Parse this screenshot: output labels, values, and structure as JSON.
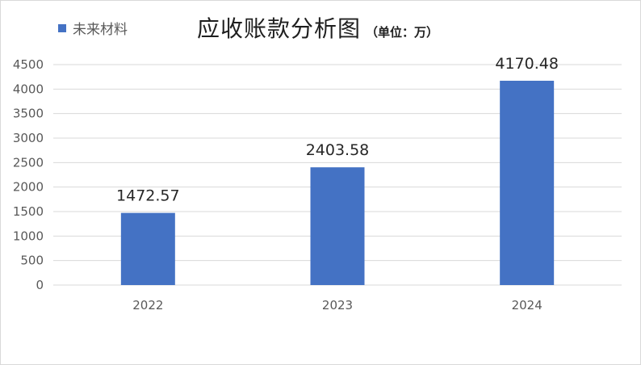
{
  "chart_data": {
    "type": "bar",
    "title": "应收账款分析图",
    "subtitle": "（单位：万）",
    "categories": [
      "2022",
      "2023",
      "2024"
    ],
    "series": [
      {
        "name": "未来材料",
        "values": [
          1472.57,
          2403.58,
          4170.48
        ]
      }
    ],
    "data_labels": [
      "1472.57",
      "2403.58",
      "4170.48"
    ],
    "y_ticks": [
      0,
      500,
      1000,
      1500,
      2000,
      2500,
      3000,
      3500,
      4000,
      4500
    ],
    "ylim": [
      0,
      4500
    ],
    "grid": true,
    "legend_position": "top-left",
    "bar_color": "#4472c4",
    "grid_color": "#d9d9d9"
  }
}
